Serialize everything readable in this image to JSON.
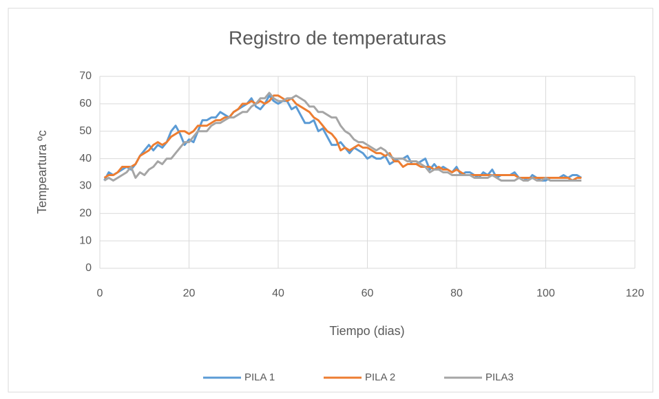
{
  "chart_data": {
    "type": "line",
    "title": "Registro de temperaturas",
    "xlabel": "Tiempo (dias)",
    "ylabel": "Tempeartura ºc",
    "x": [
      1,
      2,
      3,
      4,
      5,
      6,
      7,
      8,
      9,
      10,
      11,
      12,
      13,
      14,
      15,
      16,
      17,
      18,
      19,
      20,
      21,
      22,
      23,
      24,
      25,
      26,
      27,
      28,
      29,
      30,
      31,
      32,
      33,
      34,
      35,
      36,
      37,
      38,
      39,
      40,
      41,
      42,
      43,
      44,
      45,
      46,
      47,
      48,
      49,
      50,
      51,
      52,
      53,
      54,
      55,
      56,
      57,
      58,
      59,
      60,
      61,
      62,
      63,
      64,
      65,
      66,
      67,
      68,
      69,
      70,
      71,
      72,
      73,
      74,
      75,
      76,
      77,
      78,
      79,
      80,
      81,
      82,
      83,
      84,
      85,
      86,
      87,
      88,
      89,
      90,
      91,
      92,
      93,
      94,
      95,
      96,
      97,
      98,
      99,
      100,
      101,
      102,
      103,
      104,
      105,
      106,
      107,
      108
    ],
    "series": [
      {
        "name": "PILA 1",
        "color": "#5b9bd5",
        "values": [
          32,
          35,
          34,
          35,
          36,
          37,
          36,
          38,
          41,
          43,
          45,
          43,
          45,
          44,
          46,
          50,
          52,
          49,
          45,
          47,
          46,
          50,
          54,
          54,
          55,
          55,
          57,
          56,
          55,
          57,
          58,
          59,
          60,
          62,
          59,
          58,
          60,
          63,
          61,
          60,
          61,
          61,
          58,
          59,
          56,
          53,
          53,
          54,
          50,
          51,
          48,
          45,
          45,
          46,
          44,
          42,
          44,
          43,
          42,
          40,
          41,
          40,
          40,
          41,
          38,
          39,
          40,
          40,
          41,
          38,
          38,
          39,
          40,
          36,
          38,
          36,
          37,
          36,
          35,
          37,
          34,
          35,
          35,
          34,
          33,
          35,
          34,
          36,
          33,
          34,
          34,
          34,
          35,
          33,
          33,
          32,
          34,
          33,
          32,
          32,
          33,
          33,
          33,
          34,
          33,
          34,
          34,
          33
        ]
      },
      {
        "name": "PILA 2",
        "color": "#ed7d31",
        "values": [
          33,
          34,
          34,
          35,
          37,
          37,
          37,
          38,
          41,
          42,
          43,
          45,
          46,
          45,
          46,
          48,
          49,
          50,
          50,
          49,
          50,
          52,
          52,
          52,
          53,
          54,
          54,
          55,
          55,
          57,
          58,
          60,
          60,
          61,
          60,
          61,
          60,
          61,
          63,
          63,
          62,
          61,
          62,
          60,
          59,
          58,
          57,
          55,
          54,
          52,
          50,
          49,
          47,
          43,
          44,
          43,
          44,
          45,
          44,
          44,
          43,
          42,
          42,
          41,
          42,
          39,
          39,
          37,
          38,
          38,
          38,
          37,
          37,
          37,
          36,
          37,
          36,
          36,
          35,
          36,
          35,
          34,
          34,
          34,
          34,
          34,
          34,
          34,
          34,
          34,
          34,
          34,
          34,
          33,
          33,
          33,
          33,
          33,
          33,
          33,
          33,
          33,
          33,
          33,
          33,
          32,
          33,
          33
        ]
      },
      {
        "name": "PILA3",
        "color": "#a5a5a5",
        "values": [
          32,
          33,
          32,
          33,
          34,
          35,
          37,
          33,
          35,
          34,
          36,
          37,
          39,
          38,
          40,
          40,
          42,
          44,
          46,
          46,
          48,
          50,
          50,
          50,
          52,
          53,
          53,
          54,
          55,
          55,
          56,
          57,
          57,
          59,
          60,
          62,
          62,
          64,
          62,
          61,
          61,
          62,
          62,
          63,
          62,
          61,
          59,
          59,
          57,
          57,
          56,
          55,
          55,
          52,
          50,
          49,
          47,
          46,
          46,
          45,
          44,
          43,
          44,
          43,
          41,
          40,
          40,
          40,
          39,
          39,
          39,
          38,
          37,
          35,
          36,
          36,
          35,
          35,
          34,
          34,
          34,
          34,
          34,
          33,
          33,
          33,
          33,
          34,
          33,
          32,
          32,
          32,
          32,
          33,
          32,
          32,
          33,
          32,
          32,
          33,
          32,
          32,
          32,
          32,
          32,
          32,
          32,
          32
        ]
      }
    ],
    "xlim": [
      0,
      120
    ],
    "xticks": [
      0,
      20,
      40,
      60,
      80,
      100,
      120
    ],
    "ylim": [
      0,
      70
    ],
    "yticks": [
      0,
      10,
      20,
      30,
      40,
      50,
      60,
      70
    ],
    "grid": true,
    "legend": "bottom"
  }
}
